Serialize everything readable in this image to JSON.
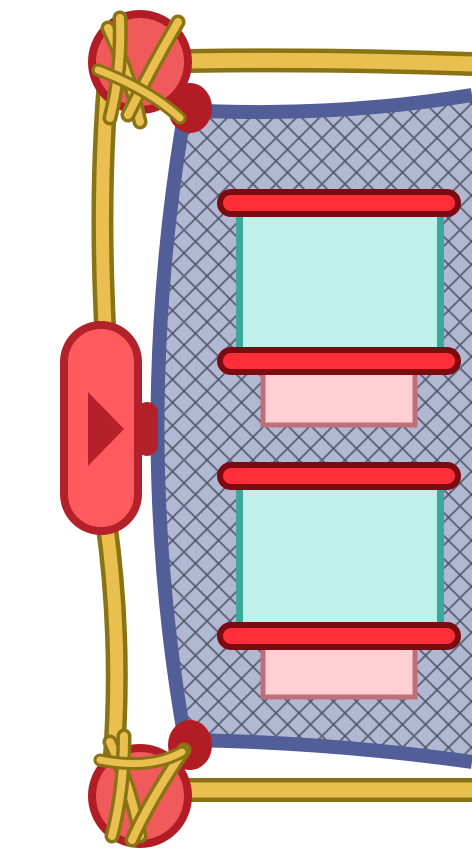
{
  "panel": {
    "state": "collapsed",
    "direction_icon": "play-arrow-icon",
    "slot_count": 2
  },
  "colors": {
    "rope": "#e9c04f",
    "rope_outline": "#8a7315",
    "knot_fill": "#f15a5a",
    "knot_outline": "#b21c24",
    "panel_fill": "#b3b8d2",
    "panel_border": "#515e98",
    "net_lines": "#4c5467",
    "rail_fill": "#ff2e38",
    "rail_outline": "#7a0b10",
    "slot_fill": "#bff0ea",
    "slot_edge": "#3aa89a",
    "tray_fill": "#ffcfd3",
    "tray_outline": "#be6f77",
    "button_fill": "#ff5a5e",
    "button_outline": "#b3222b",
    "arrow": "#b5202a"
  }
}
